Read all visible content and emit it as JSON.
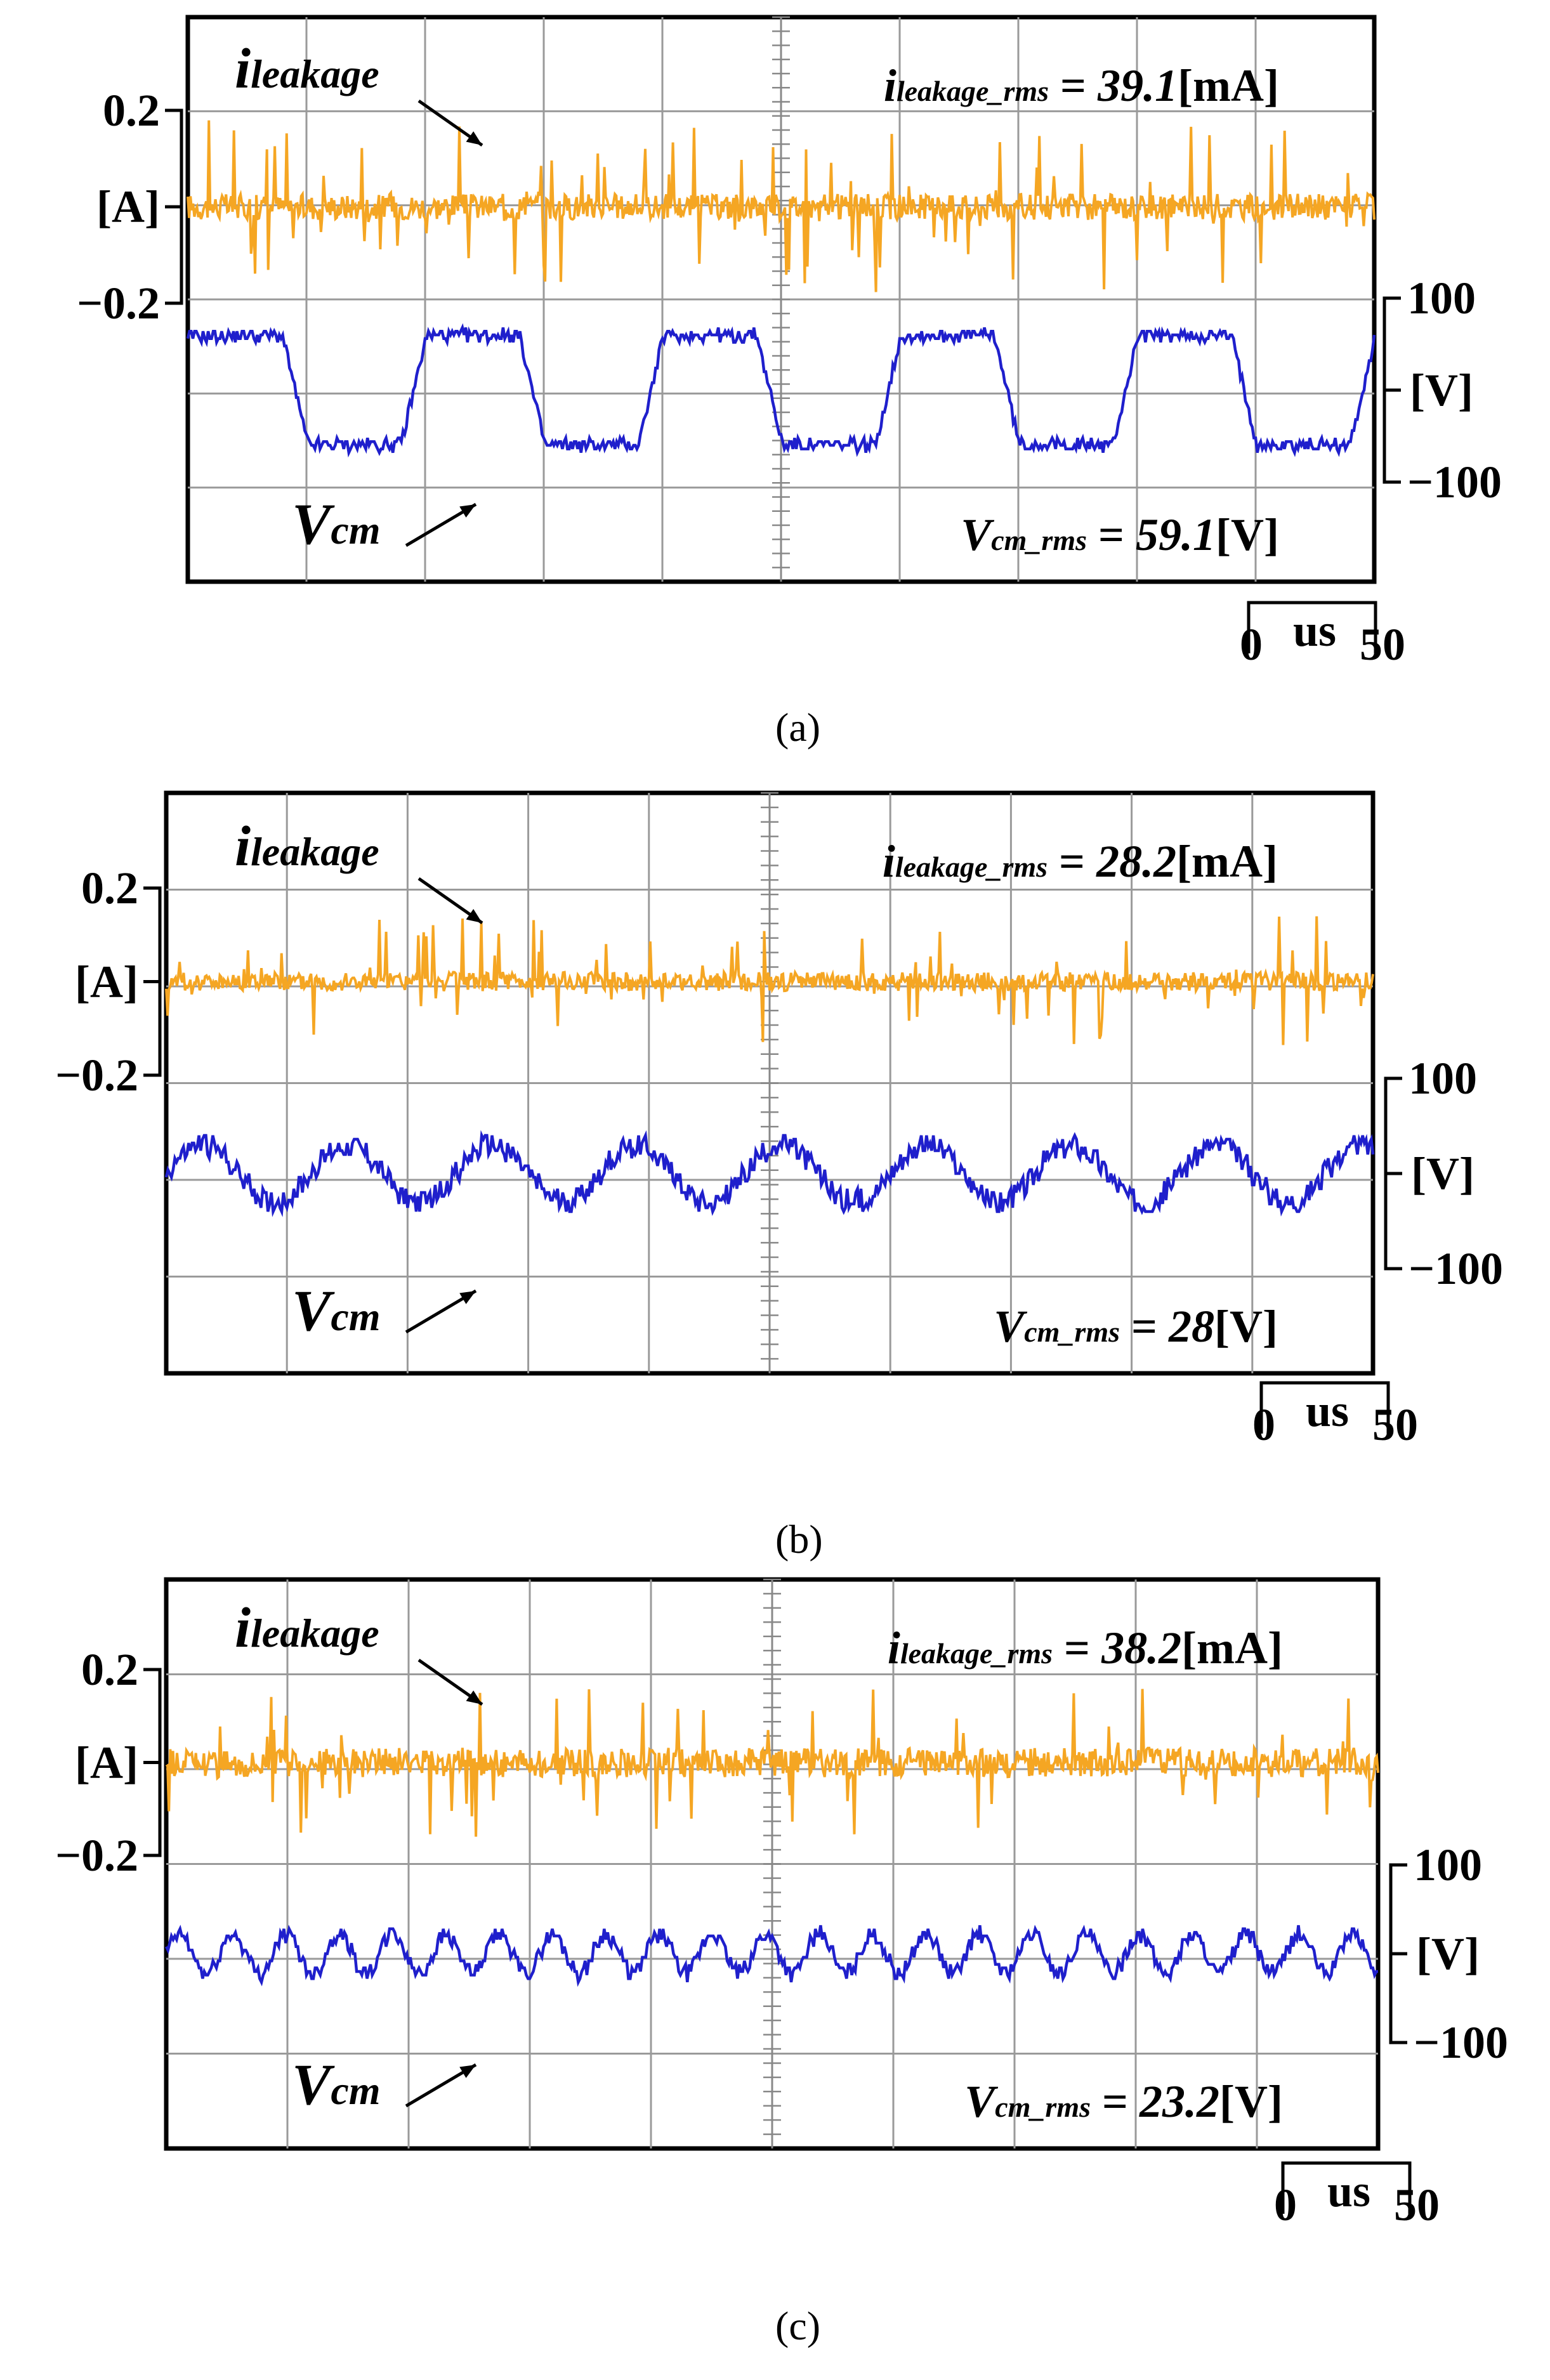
{
  "chart_data": [
    {
      "type": "line",
      "panel_caption": "(a)",
      "x_unit": "us",
      "x_scale_labels": [
        "0",
        "50"
      ],
      "x_range": [
        0,
        500
      ],
      "current_axis": {
        "ticks": [
          "0.2",
          "[A]",
          "−0.2"
        ],
        "range": [
          -0.2,
          0.2
        ]
      },
      "voltage_axis": {
        "ticks": [
          "100",
          "[V]",
          "−100"
        ],
        "range": [
          -100,
          100
        ]
      },
      "series": [
        {
          "name": "i_leakage",
          "color": "#F5A623",
          "rms_label_main": "i",
          "rms_label_sub": "leakage_rms",
          "rms_eq": " = ",
          "rms_value": "39.1",
          "rms_unit": "[mA]",
          "rms_value_numeric": 39.1,
          "noise_amplitude": 0.06,
          "spike_amplitude": 0.18
        },
        {
          "name": "V_cm",
          "color": "#1F1FCC",
          "rms_label_main": "V",
          "rms_label_sub": "cm_rms",
          "rms_eq": " = ",
          "rms_value": "59.1",
          "rms_unit": "[V]",
          "rms_value_numeric": 59.1,
          "waveform": "square",
          "amplitude": 70,
          "period_us": 100
        }
      ],
      "annotations": {
        "ileak_main": "i",
        "ileak_sub": "leakage",
        "vcm_main": "V",
        "vcm_sub": "cm"
      }
    },
    {
      "type": "line",
      "panel_caption": "(b)",
      "x_unit": "us",
      "x_scale_labels": [
        "0",
        "50"
      ],
      "x_range": [
        0,
        500
      ],
      "current_axis": {
        "ticks": [
          "0.2",
          "[A]",
          "−0.2"
        ],
        "range": [
          -0.2,
          0.2
        ]
      },
      "voltage_axis": {
        "ticks": [
          "100",
          "[V]",
          "−100"
        ],
        "range": [
          -100,
          100
        ]
      },
      "series": [
        {
          "name": "i_leakage",
          "color": "#F5A623",
          "rms_label_main": "i",
          "rms_label_sub": "leakage_rms",
          "rms_eq": " = ",
          "rms_value": "28.2",
          "rms_unit": "[mA]",
          "rms_value_numeric": 28.2,
          "noise_amplitude": 0.045,
          "spike_amplitude": 0.14
        },
        {
          "name": "V_cm",
          "color": "#1F1FCC",
          "rms_label_main": "V",
          "rms_label_sub": "cm_rms",
          "rms_eq": " = ",
          "rms_value": "28",
          "rms_unit": "[V]",
          "rms_value_numeric": 28,
          "waveform": "wavy",
          "amplitude": 30,
          "period_us": 60
        }
      ],
      "annotations": {
        "ileak_main": "i",
        "ileak_sub": "leakage",
        "vcm_main": "V",
        "vcm_sub": "cm"
      }
    },
    {
      "type": "line",
      "panel_caption": "(c)",
      "x_unit": "us",
      "x_scale_labels": [
        "0",
        "50"
      ],
      "x_range": [
        0,
        500
      ],
      "current_axis": {
        "ticks": [
          "0.2",
          "[A]",
          "−0.2"
        ],
        "range": [
          -0.2,
          0.2
        ]
      },
      "voltage_axis": {
        "ticks": [
          "100",
          "[V]",
          "−100"
        ],
        "range": [
          -100,
          100
        ]
      },
      "series": [
        {
          "name": "i_leakage",
          "color": "#F5A623",
          "rms_label_main": "i",
          "rms_label_sub": "leakage_rms",
          "rms_eq": " = ",
          "rms_value": "38.2",
          "rms_unit": "[mA]",
          "rms_value_numeric": 38.2,
          "noise_amplitude": 0.07,
          "spike_amplitude": 0.16
        },
        {
          "name": "V_cm",
          "color": "#1F1FCC",
          "rms_label_main": "V",
          "rms_label_sub": "cm_rms",
          "rms_eq": " = ",
          "rms_value": "23.2",
          "rms_unit": "[V]",
          "rms_value_numeric": 23.2,
          "waveform": "wavy",
          "amplitude": 22,
          "period_us": 22
        }
      ],
      "annotations": {
        "ileak_main": "i",
        "ileak_sub": "leakage",
        "vcm_main": "V",
        "vcm_sub": "cm"
      }
    }
  ]
}
